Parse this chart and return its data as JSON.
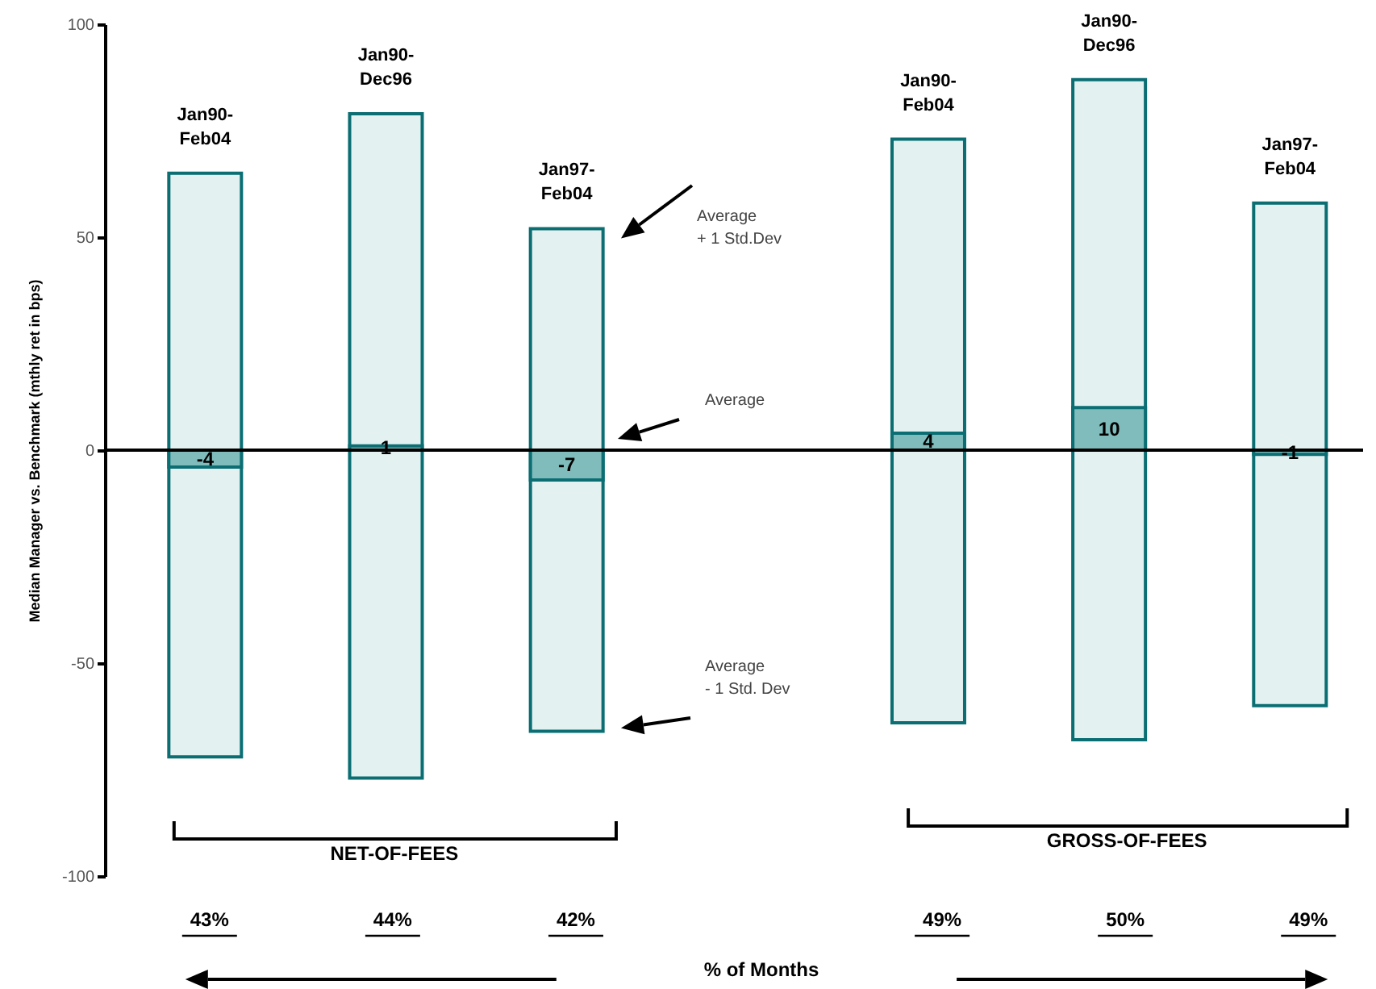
{
  "chart_data": {
    "type": "bar",
    "ylabel": "Median Manager vs. Benchmark (mthly ret in bps)",
    "xlabel": "% of Months",
    "categories": [
      "Jan90-Feb04",
      "Jan90-Dec96",
      "Jan97-Feb04",
      "Jan90-Feb04",
      "Jan90-Dec96",
      "Jan97-Feb04"
    ],
    "ylim": [
      -100,
      100
    ],
    "yticks": [
      -100,
      -50,
      0,
      50,
      100
    ],
    "series": [
      {
        "color": "#e4f1f1",
        "base": [
          -72,
          -77,
          -66,
          -64,
          -68,
          -60
        ],
        "values": [
          137,
          156,
          118,
          137,
          155,
          118
        ]
      },
      {
        "color": "#80bcbc",
        "values": [
          -4,
          1,
          -7,
          4,
          10,
          -1
        ],
        "value_labels": [
          "-4",
          "1",
          "-7",
          "4",
          "10",
          "-1"
        ]
      }
    ],
    "ref_lines": [
      {
        "axis": "y",
        "value": 0
      }
    ],
    "annotations": [
      "Average\n+ 1 Std.Dev",
      "Average",
      "Average\n- 1 Std. Dev",
      "NET-OF-FEES",
      "GROSS-OF-FEES",
      "43%",
      "44%",
      "42%",
      "49%",
      "50%",
      "49%"
    ]
  }
}
